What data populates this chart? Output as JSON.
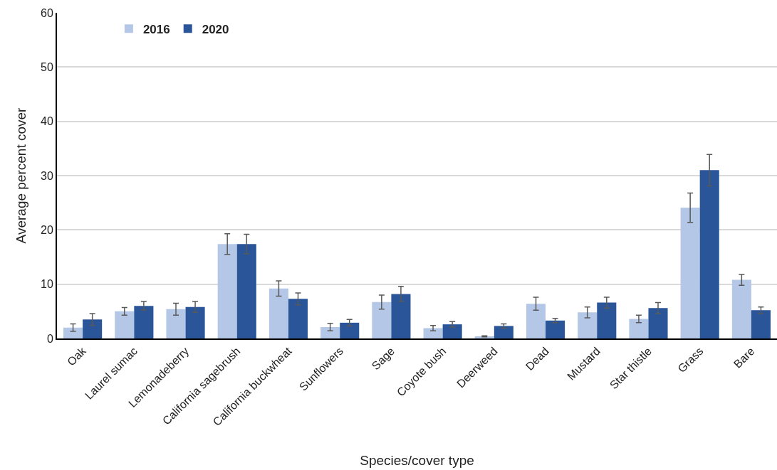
{
  "chart_data": {
    "type": "bar",
    "xlabel": "Species/cover type",
    "ylabel": "Average percent cover",
    "categories": [
      "Oak",
      "Laurel sumac",
      "Lemonadeberry",
      "California sagebrush",
      "California buckwheat",
      "Sunflowers",
      "Sage",
      "Coyote bush",
      "Deerweed",
      "Dead",
      "Mustard",
      "Star thistle",
      "Grass",
      "Bare"
    ],
    "series": [
      {
        "name": "2016",
        "color": "#b4c7e7",
        "values": [
          2.0,
          5.0,
          5.4,
          17.4,
          9.2,
          2.1,
          6.7,
          1.9,
          0.4,
          6.4,
          4.8,
          3.6,
          24.1,
          10.8
        ],
        "errors": [
          0.7,
          0.7,
          1.1,
          1.9,
          1.4,
          0.7,
          1.3,
          0.5,
          0.1,
          1.2,
          1.0,
          0.7,
          2.7,
          1.0
        ]
      },
      {
        "name": "2020",
        "color": "#2a5599",
        "values": [
          3.5,
          6.0,
          5.8,
          17.4,
          7.3,
          2.9,
          8.2,
          2.6,
          2.3,
          3.3,
          6.6,
          5.6,
          31.0,
          5.2
        ],
        "errors": [
          1.1,
          0.8,
          1.0,
          1.8,
          1.1,
          0.6,
          1.4,
          0.5,
          0.4,
          0.4,
          1.0,
          1.0,
          2.9,
          0.6
        ]
      }
    ],
    "ylim": [
      0,
      60
    ],
    "yticks": [
      0,
      10,
      20,
      30,
      40,
      50,
      60
    ],
    "grid": "y",
    "legend": "top left"
  }
}
